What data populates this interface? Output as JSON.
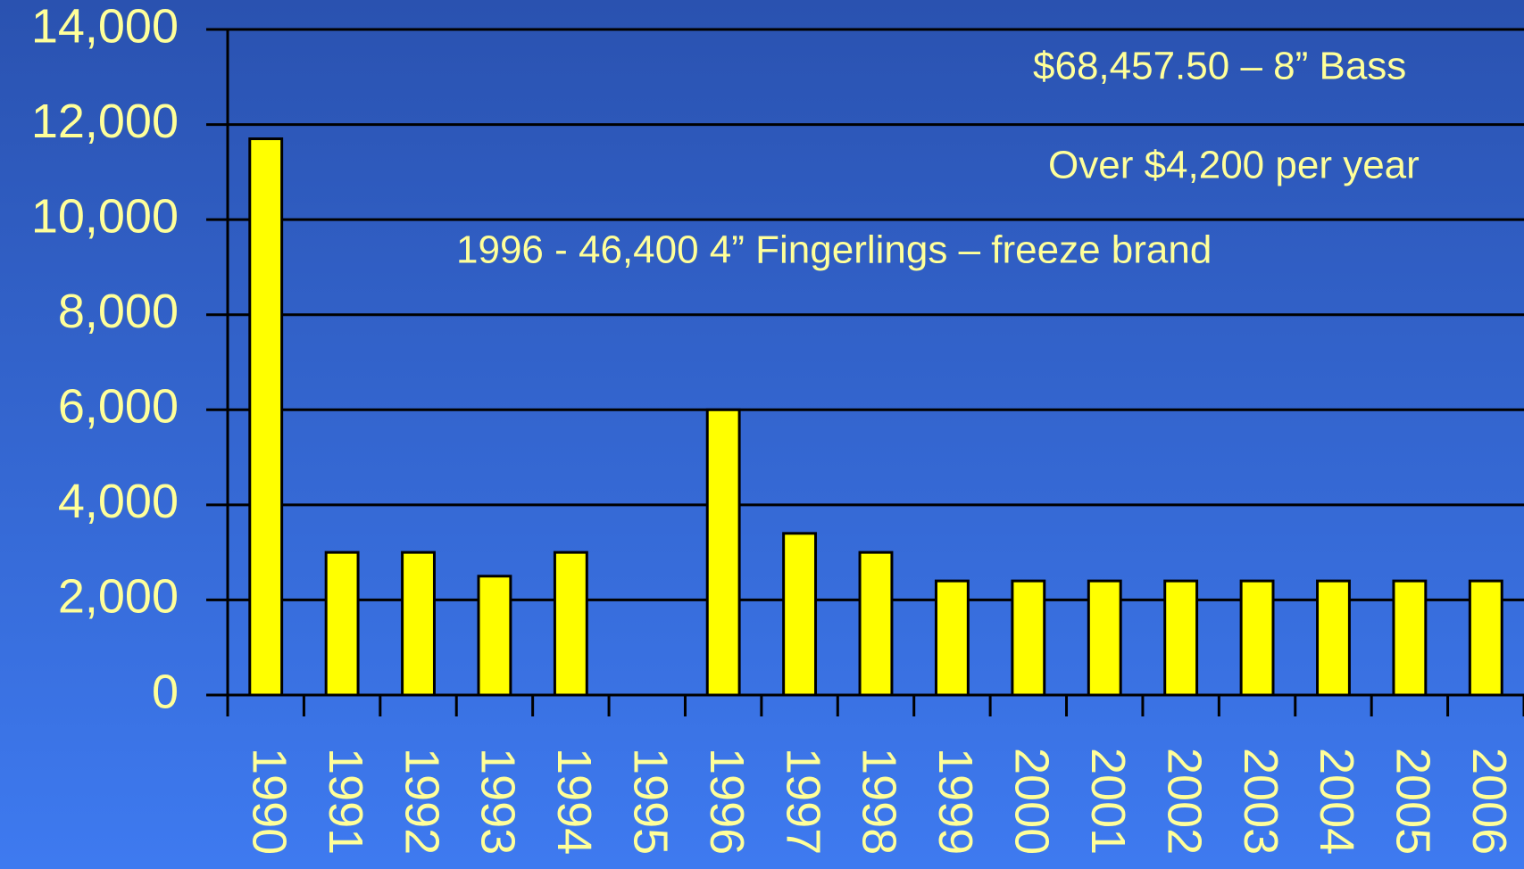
{
  "chart_data": {
    "type": "bar",
    "categories": [
      "1990",
      "1991",
      "1992",
      "1993",
      "1994",
      "1995",
      "1996",
      "1997",
      "1998",
      "1999",
      "2000",
      "2001",
      "2002",
      "2003",
      "2004",
      "2005",
      "2006"
    ],
    "values": [
      11700,
      3000,
      3000,
      2500,
      3000,
      null,
      6000,
      3400,
      3000,
      2400,
      2400,
      2400,
      2400,
      2400,
      2400,
      2400,
      2400
    ],
    "color": "#ffff00",
    "ylim": [
      0,
      14000
    ],
    "yticks": [
      0,
      {
        "value": 2000,
        "label": "2,000"
      },
      {
        "value": 4000,
        "label": "4,000"
      },
      {
        "value": 6000,
        "label": "6,000"
      },
      {
        "value": 8000,
        "label": "8,000"
      },
      {
        "value": 10000,
        "label": "10,000"
      },
      {
        "value": 12000,
        "label": "12,000"
      },
      {
        "value": 14000,
        "label": "14,000"
      }
    ],
    "grid": true,
    "annotations": [
      "$68,457.50 – 8” Bass",
      "Over $4,200 per year",
      "1996 - 46,400 4” Fingerlings – freeze brand"
    ]
  }
}
